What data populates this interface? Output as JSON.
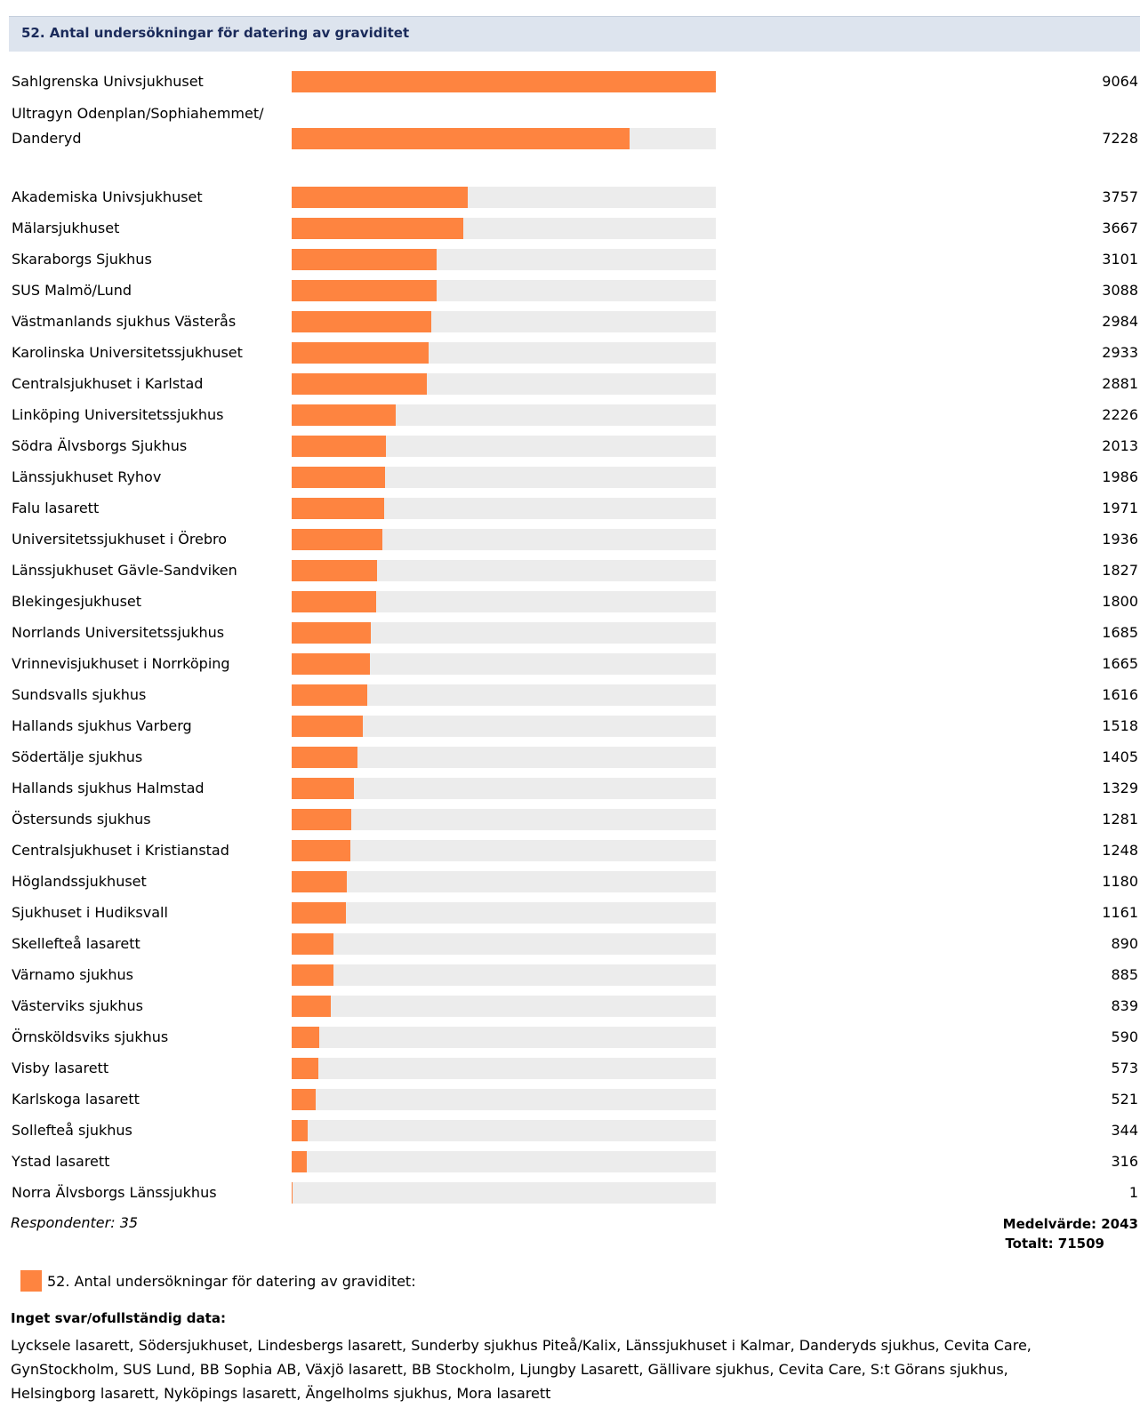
{
  "header": {
    "title": "52. Antal undersökningar för datering av graviditet"
  },
  "chart_data": {
    "type": "bar",
    "orientation": "horizontal",
    "title": "52. Antal undersökningar för datering av graviditet",
    "bar_color": "#fe8440",
    "track_color": "#ececec",
    "xlim": [
      0,
      9064
    ],
    "categories": [
      "Sahlgrenska Univsjukhuset",
      "Ultragyn Odenplan/Sophiahemmet/Danderyd",
      "Akademiska Univsjukhuset",
      "Mälarsjukhuset",
      "Skaraborgs Sjukhus",
      "SUS Malmö/Lund",
      "Västmanlands sjukhus Västerås",
      "Karolinska Universitetssjukhuset",
      "Centralsjukhuset i Karlstad",
      "Linköping Universitetssjukhus",
      "Södra Älvsborgs Sjukhus",
      "Länssjukhuset Ryhov",
      "Falu lasarett",
      "Universitetssjukhuset i Örebro",
      "Länssjukhuset Gävle-Sandviken",
      "Blekingesjukhuset",
      "Norrlands Universitetssjukhus",
      "Vrinnevisjukhuset i Norrköping",
      "Sundsvalls sjukhus",
      "Hallands sjukhus Varberg",
      "Södertälje sjukhus",
      "Hallands sjukhus Halmstad",
      "Östersunds sjukhus",
      "Centralsjukhuset i Kristianstad",
      "Höglandssjukhuset",
      "Sjukhuset i Hudiksvall",
      "Skellefteå lasarett",
      "Värnamo sjukhus",
      "Västerviks sjukhus",
      "Örnsköldsviks sjukhus",
      "Visby lasarett",
      "Karlskoga lasarett",
      "Sollefteå sjukhus",
      "Ystad lasarett",
      "Norra Älvsborgs Länssjukhus"
    ],
    "values": [
      9064,
      7228,
      3757,
      3667,
      3101,
      3088,
      2984,
      2933,
      2881,
      2226,
      2013,
      1986,
      1971,
      1936,
      1827,
      1800,
      1685,
      1665,
      1616,
      1518,
      1405,
      1329,
      1281,
      1248,
      1180,
      1161,
      890,
      885,
      839,
      590,
      573,
      521,
      344,
      316,
      1
    ],
    "legend": [
      "52. Antal undersökningar för datering av graviditet:"
    ]
  },
  "summary": {
    "respondents": "Respondenter: 35",
    "mean": "Medelvärde: 2043",
    "total": "Totalt: 71509"
  },
  "legend": {
    "label": "52. Antal undersökningar för datering av graviditet:"
  },
  "missing": {
    "title": "Inget svar/ofullständig data:",
    "lines": [
      "Lycksele lasarett, Södersjukhuset, Lindesbergs lasarett, Sunderby sjukhus Piteå/Kalix, Länssjukhuset i Kalmar, Danderyds sjukhus, Cevita Care,",
      "GynStockholm, SUS Lund, BB Sophia AB, Växjö lasarett, BB Stockholm, Ljungby Lasarett, Gällivare sjukhus, Cevita Care, S:t Görans sjukhus,",
      "Helsingborg lasarett, Nyköpings lasarett, Ängelholms sjukhus, Mora lasarett"
    ]
  }
}
